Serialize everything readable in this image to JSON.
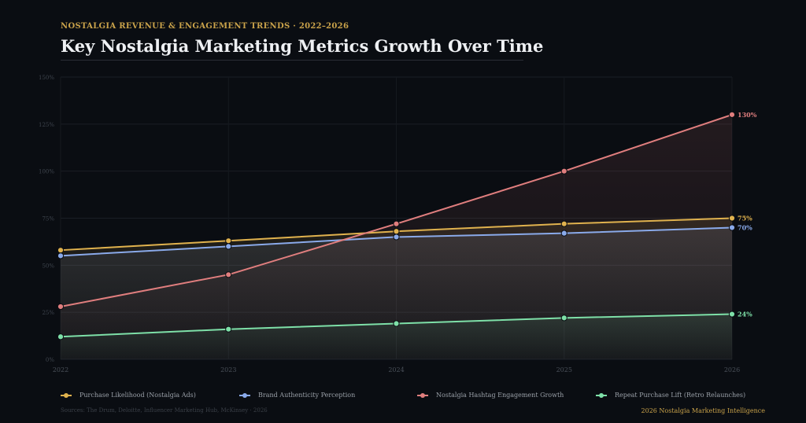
{
  "header": {
    "kicker": "NOSTALGIA REVENUE & ENGAGEMENT TRENDS · 2022–2026",
    "title": "Key Nostalgia Marketing Metrics Growth Over Time"
  },
  "footer": {
    "sources": "Sources: The Drum, Deloitte, Influencer Marketing Hub, McKinsey · 2026",
    "brand": "2026 Nostalgia Marketing Intelligence"
  },
  "chart_data": {
    "type": "line",
    "title": "Key Nostalgia Marketing Metrics Growth Over Time",
    "x": [
      "2022",
      "2023",
      "2024",
      "2025",
      "2026"
    ],
    "ylim": [
      0,
      150
    ],
    "yticks": [
      0,
      25,
      50,
      75,
      100,
      125,
      150
    ],
    "ytick_labels": [
      "0%",
      "25%",
      "50%",
      "75%",
      "100%",
      "125%",
      "150%"
    ],
    "grid": true,
    "legend_position": "bottom",
    "series": [
      {
        "name": "Purchase Likelihood (Nostalgia Ads)",
        "color": "#e0b24e",
        "values": [
          58,
          63,
          68,
          72,
          75
        ],
        "end_label": "75%"
      },
      {
        "name": "Brand Authenticity Perception",
        "color": "#8aaaea",
        "values": [
          55,
          60,
          65,
          67,
          70
        ],
        "end_label": "70%"
      },
      {
        "name": "Nostalgia Hashtag Engagement Growth",
        "color": "#e07e7e",
        "values": [
          28,
          45,
          72,
          100,
          130
        ],
        "end_label": "130%"
      },
      {
        "name": "Repeat Purchase Lift (Retro Relaunches)",
        "color": "#7ee0a8",
        "values": [
          12,
          16,
          19,
          22,
          24
        ],
        "end_label": "24%"
      }
    ]
  }
}
